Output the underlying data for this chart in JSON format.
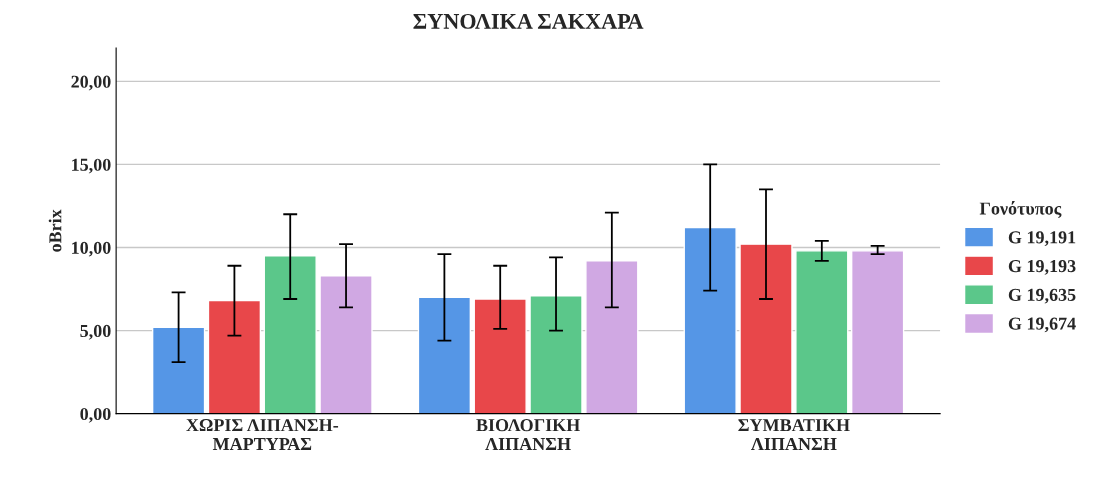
{
  "chart_data": {
    "type": "bar",
    "title": "ΣΥΝΟΛΙΚΑ ΣΑΚΧΑΡΑ",
    "ylabel": "oBrix",
    "legend_title": "Γονότυπος",
    "categories": [
      "ΧΩΡΙΣ ΛΙΠΑΝΣΗ-\nΜΑΡΤΥΡΑΣ",
      "ΒΙΟΛΟΓΙΚΗ\nΛΙΠΑΝΣΗ",
      "ΣΥΜΒΑΤΙΚΗ\nΛΙΠΑΝΣΗ"
    ],
    "series": [
      {
        "name": "G 19,191",
        "color": "#5596e6",
        "values": [
          5.2,
          7.0,
          11.2
        ],
        "errors": [
          [
            3.1,
            7.3
          ],
          [
            4.4,
            9.6
          ],
          [
            7.4,
            15.0
          ]
        ]
      },
      {
        "name": "G 19,193",
        "color": "#e8474a",
        "values": [
          6.8,
          6.9,
          10.2
        ],
        "errors": [
          [
            4.7,
            8.9
          ],
          [
            5.1,
            8.9
          ],
          [
            6.9,
            13.5
          ]
        ]
      },
      {
        "name": "G 19,635",
        "color": "#5bc78a",
        "values": [
          9.5,
          7.1,
          9.8
        ],
        "errors": [
          [
            6.9,
            12.0
          ],
          [
            5.0,
            9.4
          ],
          [
            9.2,
            10.4
          ]
        ]
      },
      {
        "name": "G 19,674",
        "color": "#d0a8e3",
        "values": [
          8.3,
          9.2,
          9.8
        ],
        "errors": [
          [
            6.4,
            10.2
          ],
          [
            6.4,
            12.1
          ],
          [
            9.6,
            10.1
          ]
        ]
      }
    ],
    "ylim": [
      0,
      22
    ],
    "yticks": [
      {
        "value": 0,
        "label": "0,00"
      },
      {
        "value": 5,
        "label": "5,00"
      },
      {
        "value": 10,
        "label": "10,00"
      },
      {
        "value": 15,
        "label": "15,00"
      },
      {
        "value": 20,
        "label": "20,00"
      }
    ],
    "grid": "y",
    "legend": "right"
  }
}
